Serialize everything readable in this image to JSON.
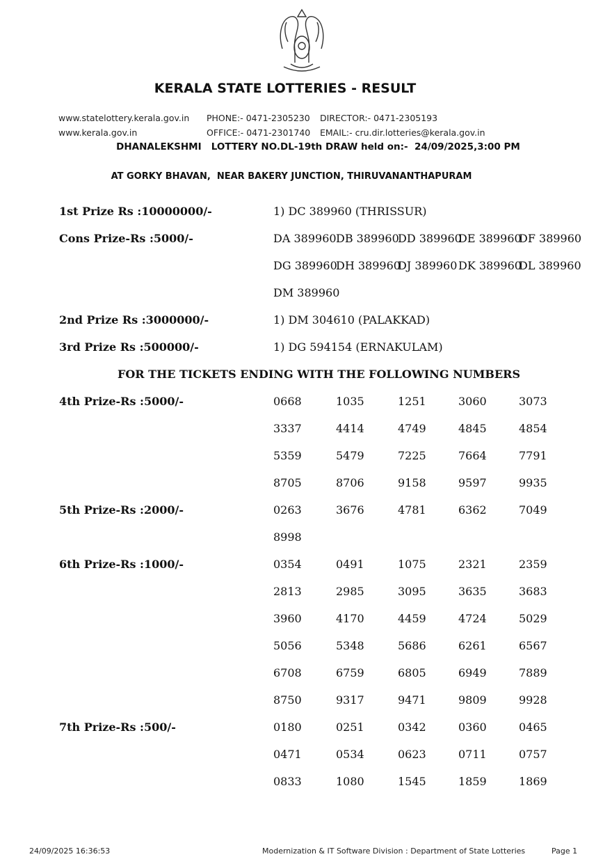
{
  "header": {
    "emblem": "Government of Kerala emblem",
    "title": "KERALA STATE LOTTERIES - RESULT",
    "website1": "www.statelottery.kerala.gov.in",
    "website2": "www.kerala.gov.in",
    "phone": "PHONE:- 0471-2305230",
    "office": "OFFICE:- 0471-2301740",
    "director": "DIRECTOR:- 0471-2305193",
    "email": "EMAIL:- cru.dir.lotteries@kerala.gov.in",
    "draw_info": "DHANALEKSHMI   LOTTERY NO.DL-19th DRAW held on:-  24/09/2025,3:00 PM",
    "venue": "AT GORKY BHAVAN,  NEAR BAKERY JUNCTION, THIRUVANANTHAPURAM"
  },
  "prizes_top": [
    {
      "label": "1st Prize Rs :10000000/-",
      "lines": [
        "1) DC 389960 (THRISSUR)"
      ]
    },
    {
      "label": "Cons Prize-Rs :5000/-",
      "grid": [
        [
          "DA 389960",
          "DB 389960",
          "DD 389960",
          "DE 389960",
          "DF 389960"
        ],
        [
          "DG 389960",
          "DH 389960",
          "DJ 389960",
          "DK 389960",
          "DL 389960"
        ],
        [
          "DM 389960"
        ]
      ]
    },
    {
      "label": "2nd Prize Rs :3000000/-",
      "lines": [
        "1) DM 304610 (PALAKKAD)"
      ]
    },
    {
      "label": "3rd Prize Rs :500000/-",
      "lines": [
        "1) DG 594154 (ERNAKULAM)"
      ]
    }
  ],
  "ending_heading": "FOR THE TICKETS ENDING WITH THE FOLLOWING NUMBERS",
  "prizes_ending": [
    {
      "label": "4th Prize-Rs :5000/-",
      "numbers": [
        "0668",
        "1035",
        "1251",
        "3060",
        "3073",
        "3337",
        "4414",
        "4749",
        "4845",
        "4854",
        "5359",
        "5479",
        "7225",
        "7664",
        "7791",
        "8705",
        "8706",
        "9158",
        "9597",
        "9935"
      ]
    },
    {
      "label": "5th Prize-Rs :2000/-",
      "numbers": [
        "0263",
        "3676",
        "4781",
        "6362",
        "7049",
        "8998"
      ]
    },
    {
      "label": "6th Prize-Rs :1000/-",
      "numbers": [
        "0354",
        "0491",
        "1075",
        "2321",
        "2359",
        "2813",
        "2985",
        "3095",
        "3635",
        "3683",
        "3960",
        "4170",
        "4459",
        "4724",
        "5029",
        "5056",
        "5348",
        "5686",
        "6261",
        "6567",
        "6708",
        "6759",
        "6805",
        "6949",
        "7889",
        "8750",
        "9317",
        "9471",
        "9809",
        "9928"
      ]
    },
    {
      "label": "7th Prize-Rs :500/-",
      "numbers": [
        "0180",
        "0251",
        "0342",
        "0360",
        "0465",
        "0471",
        "0534",
        "0623",
        "0711",
        "0757",
        "0833",
        "1080",
        "1545",
        "1859",
        "1869"
      ]
    }
  ],
  "footer": {
    "timestamp": "24/09/2025 16:36:53",
    "division": "Modernization & IT Software Division : Department of State Lotteries",
    "page": "Page 1"
  }
}
